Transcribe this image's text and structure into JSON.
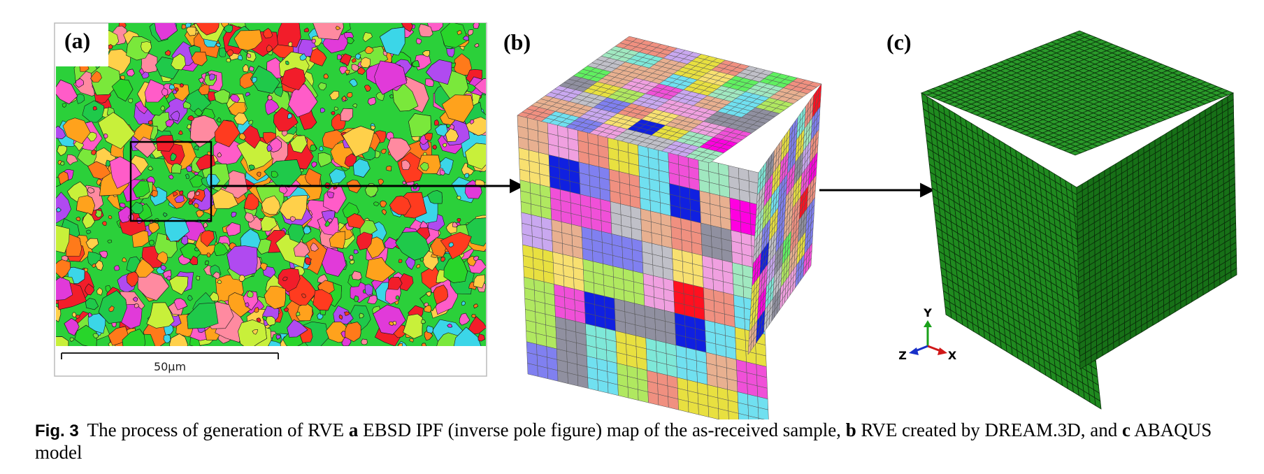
{
  "panels": {
    "a": {
      "label": "(a)",
      "scale_bar": "50μm"
    },
    "b": {
      "label": "(b)"
    },
    "c": {
      "label": "(c)",
      "axes": {
        "y": "Y",
        "x": "X",
        "z": "Z"
      }
    }
  },
  "caption": {
    "fig_number": "Fig. 3",
    "part1": "The process of generation of RVE ",
    "a": "a",
    "part2": " EBSD IPF (inverse pole figure) map of the as-received sample, ",
    "b": "b",
    "part3": " RVE created by DREAM.3D, and ",
    "c": "c",
    "part4": " ABAQUS model"
  },
  "colors": {
    "ebsd_palette": [
      "#f21d2a",
      "#ff3b1f",
      "#ff7a1a",
      "#ffa21c",
      "#28d52a",
      "#1fc94a",
      "#7ae83b",
      "#c8f03a",
      "#ff5cc8",
      "#e13ad9",
      "#b04af0",
      "#ffd04a",
      "#3bd6e8",
      "#ff8aa0"
    ],
    "rve_palette": [
      "#c9a8f0",
      "#7ee8d8",
      "#f0a0e0",
      "#a0e8c0",
      "#e8b090",
      "#f8e070",
      "#9090a0",
      "#f050d8",
      "#70e0f0",
      "#b0e860",
      "#c0c0c8",
      "#e8e040",
      "#f09080",
      "#60f060",
      "#8080f0"
    ],
    "rve_accents": [
      "#ff1020",
      "#ff00e0",
      "#1020e0"
    ],
    "mesh_green": "#1f8a1f",
    "mesh_green_top": "#2a9a2a",
    "mesh_green_right": "#177017"
  }
}
